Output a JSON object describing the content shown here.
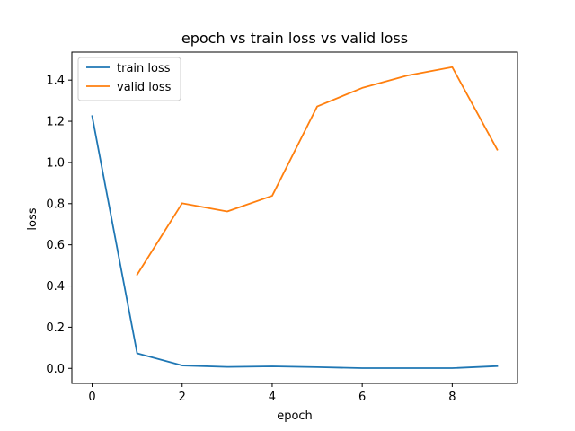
{
  "chart_data": {
    "type": "line",
    "title": "epoch vs train loss vs valid loss",
    "xlabel": "epoch",
    "ylabel": "loss",
    "xlim": [
      -0.45,
      9.45
    ],
    "ylim": [
      -0.073,
      1.536
    ],
    "x_ticks": [
      0,
      2,
      4,
      6,
      8
    ],
    "y_ticks": [
      0.0,
      0.2,
      0.4,
      0.6,
      0.8,
      1.0,
      1.2,
      1.4
    ],
    "x_tick_labels": [
      "0",
      "2",
      "4",
      "6",
      "8"
    ],
    "y_tick_labels": [
      "0.0",
      "0.2",
      "0.4",
      "0.6",
      "0.8",
      "1.0",
      "1.2",
      "1.4"
    ],
    "grid": false,
    "legend": "top-left",
    "series": [
      {
        "name": "train loss",
        "color": "#1f77b4",
        "x": [
          0,
          1,
          2,
          3,
          4,
          5,
          6,
          7,
          8,
          9
        ],
        "y": [
          1.225,
          0.073,
          0.014,
          0.007,
          0.01,
          0.006,
          0.001,
          0.001,
          0.001,
          0.011
        ]
      },
      {
        "name": "valid loss",
        "color": "#ff7f0e",
        "x": [
          1,
          2,
          3,
          4,
          5,
          6,
          7,
          8,
          9
        ],
        "y": [
          0.455,
          0.802,
          0.762,
          0.838,
          1.272,
          1.362,
          1.422,
          1.463,
          1.062
        ]
      }
    ]
  }
}
